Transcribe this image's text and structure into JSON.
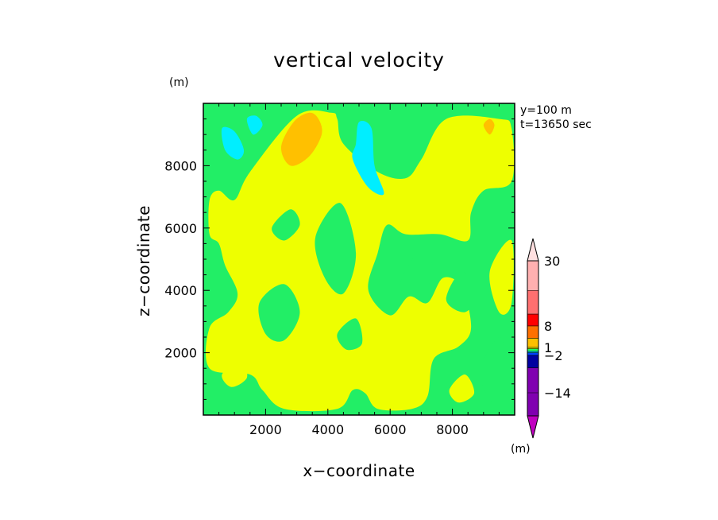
{
  "chart_data": {
    "type": "heatmap",
    "title": "vertical velocity",
    "xlabel": "x−coordinate",
    "ylabel": "z−coordinate",
    "x_unit": "(m)",
    "z_unit": "(m)",
    "annotations": [
      "y=100 m",
      "t=13650 sec"
    ],
    "xlim": [
      0,
      10000
    ],
    "ylim": [
      0,
      10000
    ],
    "x_ticks": [
      2000,
      4000,
      6000,
      8000
    ],
    "y_ticks": [
      2000,
      4000,
      6000,
      8000
    ],
    "colorbar": {
      "labels": [
        {
          "text": "30",
          "value": 30
        },
        {
          "text": "8",
          "value": 8
        },
        {
          "text": "1",
          "value": 1
        },
        {
          "text": "−2",
          "value": -2
        },
        {
          "text": "−14",
          "value": -14
        }
      ],
      "colors": [
        "#c000c0",
        "#8000b0",
        "#0000a0",
        "#0040ff",
        "#00c0ff",
        "#20ff60",
        "#e8ff00",
        "#ffc000",
        "#ff7000",
        "#ff0000",
        "#ff7070",
        "#ffb0b0",
        "#ffe0e0"
      ]
    },
    "background_color": "#22ee66",
    "regions": [
      {
        "level": "positive",
        "color": "#eeff00",
        "points": [
          [
            1500,
            7800
          ],
          [
            3000,
            9600
          ],
          [
            4100,
            9700
          ],
          [
            4300,
            9500
          ],
          [
            4500,
            8700
          ],
          [
            5600,
            7800
          ],
          [
            6500,
            7600
          ],
          [
            7000,
            8200
          ],
          [
            7800,
            9500
          ],
          [
            9500,
            9500
          ],
          [
            9900,
            9200
          ],
          [
            9900,
            7500
          ],
          [
            9000,
            7200
          ],
          [
            8600,
            6500
          ],
          [
            8500,
            5600
          ],
          [
            7600,
            5800
          ],
          [
            6500,
            5800
          ],
          [
            5900,
            6100
          ],
          [
            5600,
            5200
          ],
          [
            5300,
            4000
          ],
          [
            6000,
            3200
          ],
          [
            6600,
            3800
          ],
          [
            7200,
            3600
          ],
          [
            7700,
            4400
          ],
          [
            8300,
            4100
          ],
          [
            8600,
            2800
          ],
          [
            8200,
            2200
          ],
          [
            7400,
            1800
          ],
          [
            7200,
            600
          ],
          [
            6700,
            200
          ],
          [
            5600,
            200
          ],
          [
            5200,
            700
          ],
          [
            4800,
            800
          ],
          [
            4300,
            200
          ],
          [
            2600,
            200
          ],
          [
            1900,
            800
          ],
          [
            1500,
            1300
          ],
          [
            200,
            1500
          ],
          [
            200,
            2800
          ],
          [
            800,
            3300
          ],
          [
            1100,
            3900
          ],
          [
            700,
            4800
          ],
          [
            500,
            5500
          ],
          [
            200,
            5800
          ],
          [
            200,
            6900
          ],
          [
            500,
            7200
          ],
          [
            1000,
            6900
          ]
        ]
      },
      {
        "level": "zero",
        "color": "#22ee66",
        "points": [
          [
            1800,
            3600
          ],
          [
            2600,
            4200
          ],
          [
            3100,
            3300
          ],
          [
            2600,
            2400
          ],
          [
            2000,
            2600
          ]
        ]
      },
      {
        "level": "zero",
        "color": "#22ee66",
        "points": [
          [
            3600,
            5700
          ],
          [
            4400,
            6800
          ],
          [
            4900,
            5200
          ],
          [
            4500,
            3900
          ],
          [
            3900,
            4400
          ]
        ]
      },
      {
        "level": "zero",
        "color": "#22ee66",
        "points": [
          [
            6300,
            4100
          ],
          [
            6900,
            5200
          ],
          [
            7400,
            4700
          ],
          [
            7000,
            3900
          ]
        ]
      },
      {
        "level": "zero",
        "color": "#22ee66",
        "points": [
          [
            7800,
            3700
          ],
          [
            8300,
            4600
          ],
          [
            8800,
            3900
          ],
          [
            8400,
            3300
          ]
        ]
      },
      {
        "level": "zero",
        "color": "#22ee66",
        "points": [
          [
            2200,
            6000
          ],
          [
            2800,
            6600
          ],
          [
            3100,
            6100
          ],
          [
            2600,
            5600
          ]
        ]
      },
      {
        "level": "zero",
        "color": "#22ee66",
        "points": [
          [
            4300,
            2600
          ],
          [
            4900,
            3100
          ],
          [
            5100,
            2300
          ],
          [
            4600,
            2100
          ]
        ]
      },
      {
        "level": "zero",
        "color": "#22ee66",
        "points": [
          [
            8900,
            1400
          ],
          [
            9500,
            2500
          ],
          [
            9800,
            1600
          ],
          [
            9900,
            700
          ],
          [
            9300,
            400
          ]
        ]
      },
      {
        "level": "positive",
        "color": "#eeff00",
        "points": [
          [
            9200,
            4600
          ],
          [
            9900,
            5600
          ],
          [
            9900,
            3600
          ],
          [
            9500,
            3300
          ]
        ]
      },
      {
        "level": "positive",
        "color": "#eeff00",
        "points": [
          [
            600,
            1300
          ],
          [
            1200,
            1700
          ],
          [
            1400,
            1200
          ],
          [
            900,
            900
          ]
        ]
      },
      {
        "level": "positive",
        "color": "#eeff00",
        "points": [
          [
            7900,
            800
          ],
          [
            8400,
            1300
          ],
          [
            8700,
            700
          ],
          [
            8200,
            400
          ]
        ]
      },
      {
        "level": "strong-positive",
        "color": "#ffc000",
        "points": [
          [
            2500,
            8600
          ],
          [
            2900,
            9400
          ],
          [
            3400,
            9700
          ],
          [
            3700,
            9500
          ],
          [
            3800,
            9000
          ],
          [
            3400,
            8300
          ],
          [
            2800,
            8000
          ]
        ]
      },
      {
        "level": "strong-positive",
        "color": "#ffc000",
        "points": [
          [
            9000,
            9300
          ],
          [
            9200,
            9500
          ],
          [
            9350,
            9300
          ],
          [
            9200,
            9000
          ]
        ]
      },
      {
        "level": "negative",
        "color": "#00eeff",
        "points": [
          [
            600,
            9200
          ],
          [
            1000,
            9100
          ],
          [
            1300,
            8500
          ],
          [
            1100,
            8200
          ],
          [
            700,
            8500
          ]
        ]
      },
      {
        "level": "negative",
        "color": "#00eeff",
        "points": [
          [
            1400,
            9500
          ],
          [
            1700,
            9600
          ],
          [
            1900,
            9300
          ],
          [
            1600,
            9000
          ]
        ]
      },
      {
        "level": "negative",
        "color": "#00eeff",
        "points": [
          [
            4900,
            8700
          ],
          [
            5000,
            9400
          ],
          [
            5400,
            9200
          ],
          [
            5500,
            8000
          ],
          [
            5800,
            7100
          ],
          [
            5300,
            7300
          ],
          [
            4800,
            8200
          ]
        ]
      }
    ]
  }
}
